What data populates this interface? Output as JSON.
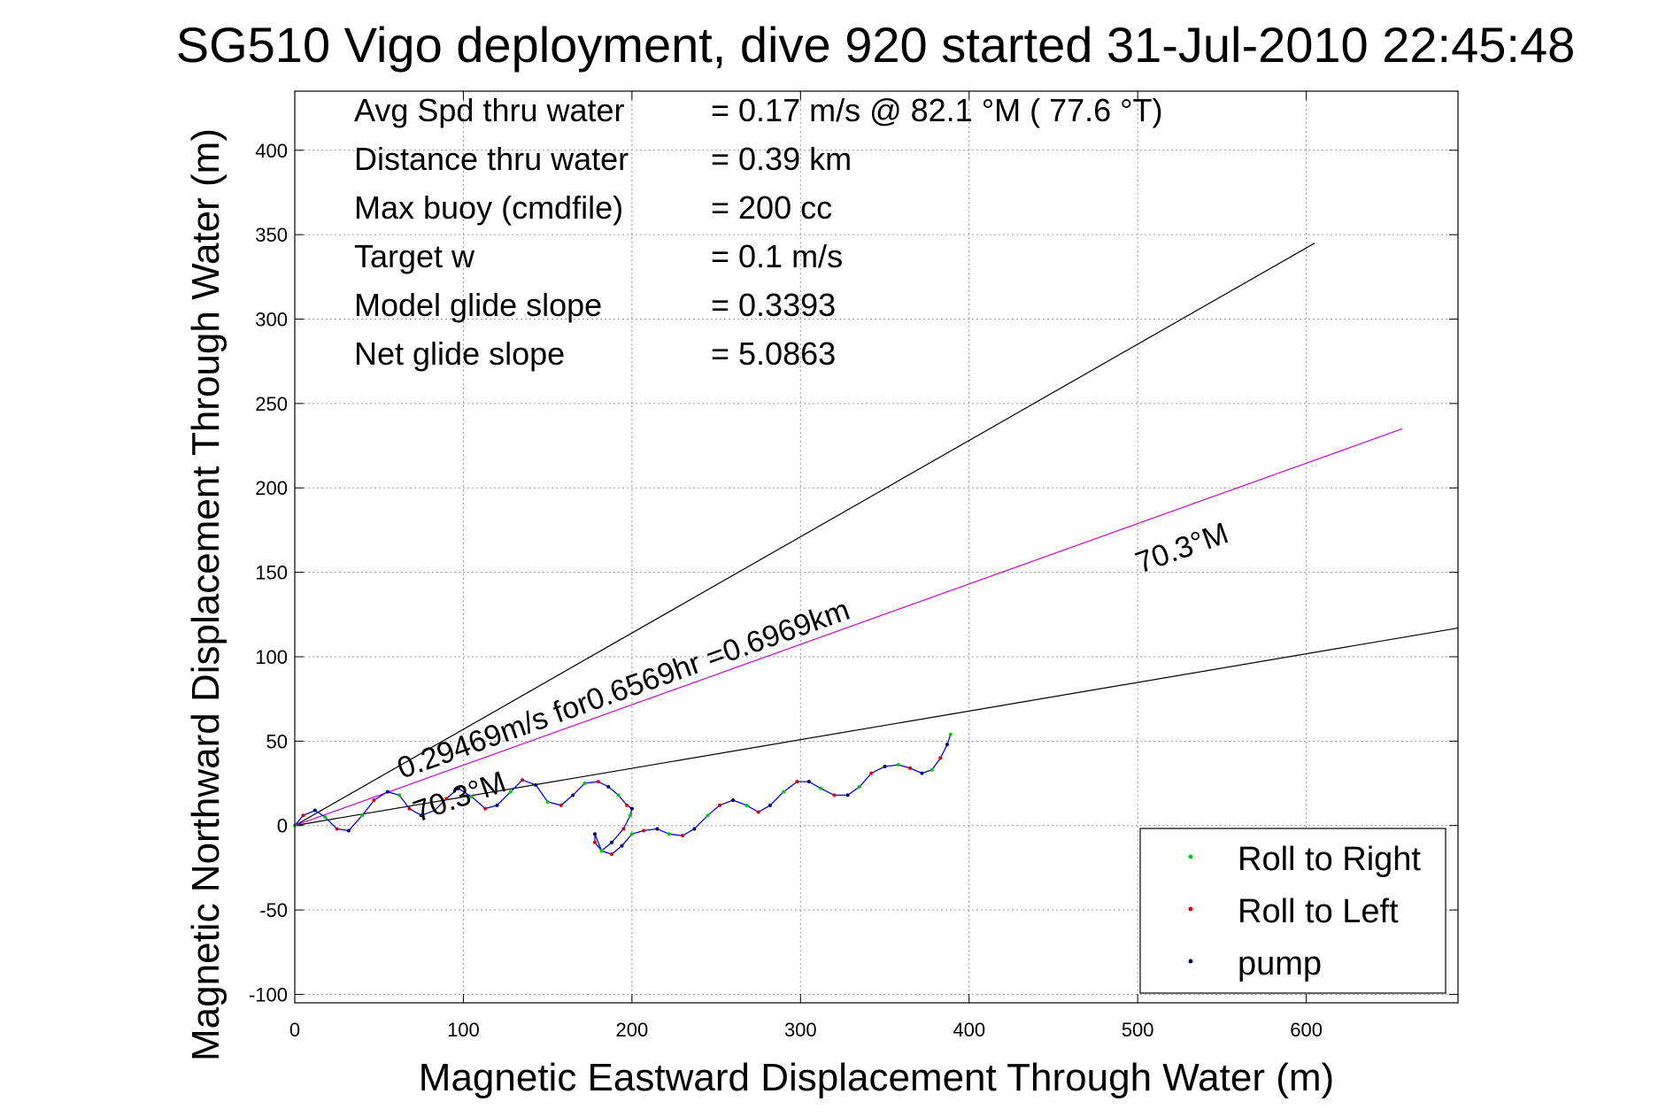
{
  "chart_data": {
    "type": "line",
    "title": "SG510 Vigo deployment, dive 920 started 31-Jul-2010 22:45:48",
    "xlabel": "Magnetic Eastward Displacement Through Water (m)",
    "ylabel": "Magnetic Northward Displacement Through Water (m)",
    "xlim": [
      0,
      690
    ],
    "ylim": [
      -105,
      435
    ],
    "xticks": [
      0,
      100,
      200,
      300,
      400,
      500,
      600
    ],
    "yticks": [
      -100,
      -50,
      0,
      50,
      100,
      150,
      200,
      250,
      300,
      350,
      400
    ],
    "grid": true,
    "legend_position": "bottom-right",
    "legend": [
      {
        "label": "Roll to Right",
        "color": "#00cc00"
      },
      {
        "label": "Roll to Left",
        "color": "#dd0000"
      },
      {
        "label": "pump",
        "color": "#000066"
      }
    ],
    "stats": [
      {
        "label": "Avg Spd thru water",
        "value": "=  0.17 m/s @  82.1 °M ( 77.6 °T)"
      },
      {
        "label": "Distance thru water",
        "value": "=  0.39 km"
      },
      {
        "label": "Max buoy (cmdfile)",
        "value": "= 200 cc"
      },
      {
        "label": "Target w",
        "value": "= 0.1 m/s"
      },
      {
        "label": "Model glide slope",
        "value": "= 0.3393"
      },
      {
        "label": "Net glide slope",
        "value": "= 5.0863"
      }
    ],
    "annotations": {
      "current_label": "0.29469m/s for0.6569hr =0.6969km",
      "heading_label_far": "70.3°M",
      "heading_label_near": "70.3°M"
    },
    "reference_lines": [
      {
        "name": "upper envelope",
        "color": "#000000",
        "x": [
          0,
          605
        ],
        "y": [
          0,
          345
        ]
      },
      {
        "name": "lower envelope",
        "color": "#000000",
        "x": [
          0,
          690
        ],
        "y": [
          0,
          117
        ]
      },
      {
        "name": "current direction",
        "color": "#cc00cc",
        "x": [
          0,
          657
        ],
        "y": [
          0,
          235
        ]
      }
    ],
    "series": [
      {
        "color": "#0000ff",
        "x": [
          0,
          5,
          12,
          18,
          25,
          32,
          40,
          47,
          55,
          62,
          68,
          75,
          83,
          90,
          97,
          105,
          113,
          120,
          128,
          135,
          143,
          150,
          158,
          165,
          172,
          180,
          186,
          192,
          197,
          200,
          199,
          195,
          188,
          182,
          178,
          178,
          182,
          188,
          194,
          200,
          207,
          215,
          222,
          230,
          237,
          245,
          252,
          260,
          268,
          275,
          282,
          290,
          298,
          305,
          312,
          320,
          328,
          335,
          342,
          350,
          358,
          365,
          372,
          378,
          383,
          387,
          389
        ],
        "y": [
          0,
          6,
          9,
          5,
          -2,
          -3,
          6,
          15,
          20,
          18,
          10,
          6,
          9,
          16,
          22,
          17,
          10,
          12,
          20,
          27,
          24,
          14,
          12,
          18,
          25,
          26,
          23,
          18,
          12,
          10,
          6,
          -2,
          -10,
          -15,
          -10,
          -5,
          -15,
          -17,
          -12,
          -5,
          -3,
          -2,
          -5,
          -6,
          -2,
          6,
          12,
          15,
          12,
          8,
          12,
          20,
          26,
          26,
          22,
          18,
          18,
          23,
          31,
          35,
          36,
          34,
          31,
          33,
          40,
          48,
          54
        ]
      }
    ]
  }
}
